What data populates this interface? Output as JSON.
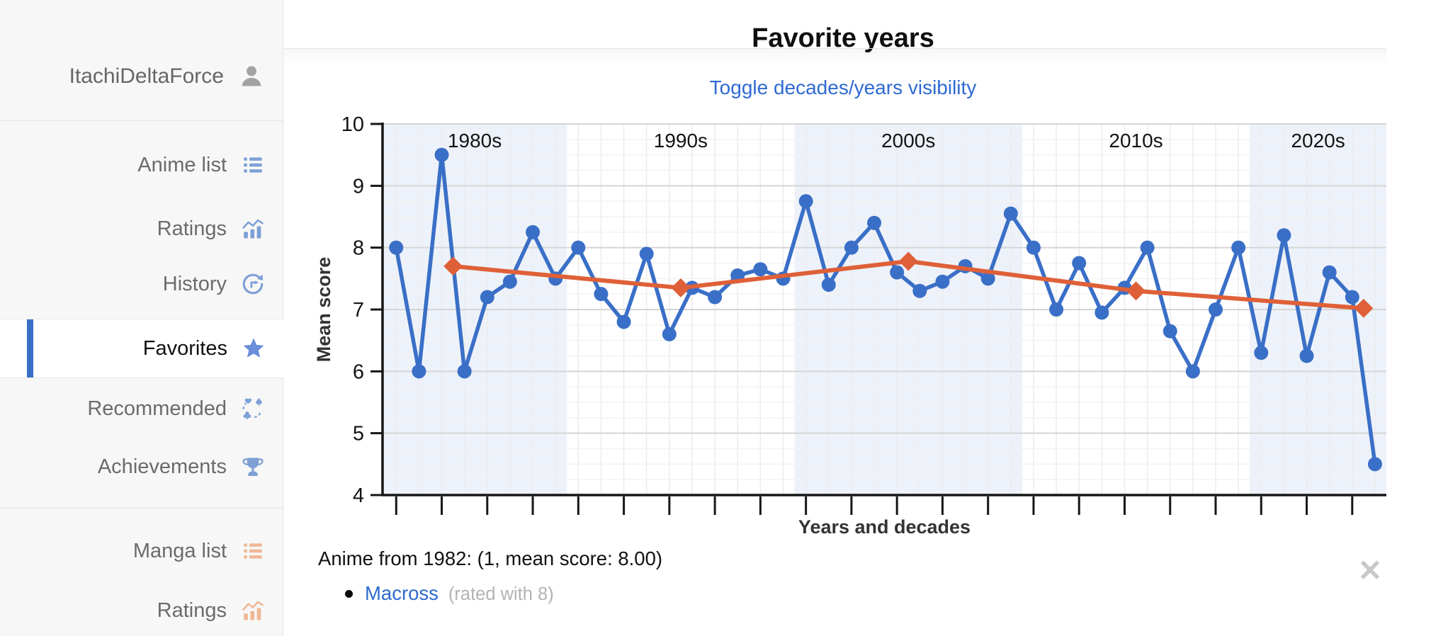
{
  "sidebar": {
    "username": "ItachiDeltaForce",
    "groups": [
      {
        "items": [
          {
            "label": "Anime list",
            "icon": "list-icon"
          },
          {
            "label": "Ratings",
            "icon": "ratings-chart-icon"
          },
          {
            "label": "History",
            "icon": "history-icon"
          },
          {
            "label": "Favorites",
            "icon": "star-icon",
            "active": true
          },
          {
            "label": "Recommended",
            "icon": "recommended-icon"
          },
          {
            "label": "Achievements",
            "icon": "trophy-icon"
          }
        ]
      },
      {
        "items": [
          {
            "label": "Manga list",
            "icon": "list-icon"
          },
          {
            "label": "Ratings",
            "icon": "ratings-chart-icon"
          }
        ]
      }
    ]
  },
  "header": {
    "title": "Favorite years"
  },
  "toolbar": {
    "toggle_label": "Toggle decades/years visibility"
  },
  "chart_data": {
    "type": "line",
    "title": "Favorite years",
    "xlabel": "Years and decades",
    "ylabel": "Mean score",
    "ylim": [
      4,
      10
    ],
    "x_domain": [
      1981.4,
      2025.5
    ],
    "yticks": [
      4,
      5,
      6,
      7,
      8,
      9,
      10
    ],
    "xticks": [
      1982,
      1984,
      1986,
      1988,
      1990,
      1992,
      1994,
      1996,
      1998,
      2000,
      2002,
      2004,
      2006,
      2008,
      2010,
      2012,
      2014,
      2016,
      2018,
      2020,
      2022,
      2024
    ],
    "grid": true,
    "legend": "none",
    "decade_regions": [
      {
        "label": "1980s",
        "start": 1981.4,
        "end": 1989.5,
        "shaded": true
      },
      {
        "label": "1990s",
        "start": 1989.5,
        "end": 1999.5,
        "shaded": false
      },
      {
        "label": "2000s",
        "start": 1999.5,
        "end": 2009.5,
        "shaded": true
      },
      {
        "label": "2010s",
        "start": 2009.5,
        "end": 2019.5,
        "shaded": false
      },
      {
        "label": "2020s",
        "start": 2019.5,
        "end": 2025.5,
        "shaded": true
      }
    ],
    "series": [
      {
        "name": "years",
        "marker": "circle",
        "color": "#3a6fc7",
        "points": [
          [
            1982,
            8.0
          ],
          [
            1983,
            6.0
          ],
          [
            1984,
            9.5
          ],
          [
            1985,
            6.0
          ],
          [
            1986,
            7.2
          ],
          [
            1987,
            7.45
          ],
          [
            1988,
            8.25
          ],
          [
            1989,
            7.5
          ],
          [
            1990,
            8.0
          ],
          [
            1991,
            7.25
          ],
          [
            1992,
            6.8
          ],
          [
            1993,
            7.9
          ],
          [
            1994,
            6.6
          ],
          [
            1995,
            7.35
          ],
          [
            1996,
            7.2
          ],
          [
            1997,
            7.55
          ],
          [
            1998,
            7.65
          ],
          [
            1999,
            7.5
          ],
          [
            2000,
            8.75
          ],
          [
            2001,
            7.4
          ],
          [
            2002,
            8.0
          ],
          [
            2003,
            8.4
          ],
          [
            2004,
            7.6
          ],
          [
            2005,
            7.3
          ],
          [
            2006,
            7.45
          ],
          [
            2007,
            7.7
          ],
          [
            2008,
            7.5
          ],
          [
            2009,
            8.55
          ],
          [
            2010,
            8.0
          ],
          [
            2011,
            7.0
          ],
          [
            2012,
            7.75
          ],
          [
            2013,
            6.95
          ],
          [
            2014,
            7.35
          ],
          [
            2015,
            8.0
          ],
          [
            2016,
            6.65
          ],
          [
            2017,
            6.0
          ],
          [
            2018,
            7.0
          ],
          [
            2019,
            8.0
          ],
          [
            2020,
            6.3
          ],
          [
            2021,
            8.2
          ],
          [
            2022,
            6.25
          ],
          [
            2023,
            7.6
          ],
          [
            2024,
            7.2
          ],
          [
            2025,
            4.5
          ]
        ]
      },
      {
        "name": "decades",
        "marker": "diamond",
        "color": "#df6038",
        "points": [
          [
            1984.5,
            7.7
          ],
          [
            1994.5,
            7.35
          ],
          [
            2004.5,
            7.78
          ],
          [
            2014.5,
            7.3
          ],
          [
            2024.5,
            7.02
          ]
        ]
      }
    ],
    "colors": {
      "band": "#edf2fa",
      "grid_minor": "#f2f2f2",
      "grid_major": "#d5d5d5",
      "grid_vertical": "#ececec",
      "axis": "#161616",
      "text": "#141414",
      "axis_title": "#333333"
    }
  },
  "tooltip": {
    "summary": "Anime from 1982: (1, mean score: 8.00)",
    "items": [
      {
        "title": "Macross",
        "note": "(rated with 8)"
      }
    ],
    "close_icon": "✕"
  }
}
